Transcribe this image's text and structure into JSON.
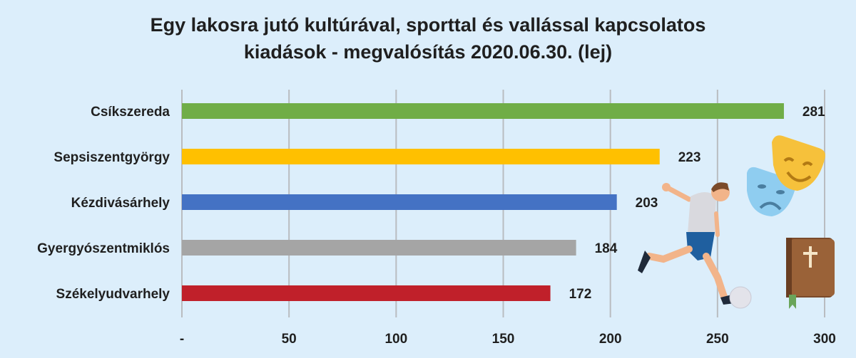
{
  "chart_data": {
    "type": "bar",
    "orientation": "horizontal",
    "title_lines": [
      "Egy lakosra jutó kultúrával, sporttal és vallással kapcsolatos",
      "kiadások - megvalósítás 2020.06.30. (lej)"
    ],
    "categories": [
      "Csíkszereda",
      "Sepsiszentgyörgy",
      "Kézdivásárhely",
      "Gyergyószentmiklós",
      "Székelyudvarhely"
    ],
    "values": [
      281,
      223,
      203,
      184,
      172
    ],
    "colors": [
      "#70ad47",
      "#ffc000",
      "#4472c4",
      "#a5a5a5",
      "#c0202a"
    ],
    "x_ticks": [
      "-",
      "50",
      "100",
      "150",
      "200",
      "250",
      "300"
    ],
    "xlim": [
      0,
      300
    ],
    "grid": true,
    "legend": "none"
  },
  "illustrations": {
    "masks": "theatre-masks-icon",
    "player": "football-player-icon",
    "book": "bible-icon"
  }
}
